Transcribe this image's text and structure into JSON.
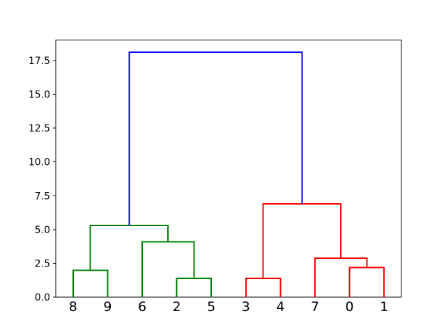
{
  "figure": {
    "background": "#ffffff",
    "frame_color": "#000000",
    "tick_color": "#000000",
    "label_color": "#000000"
  },
  "chart_data": {
    "type": "dendrogram",
    "title": "",
    "xlabel": "",
    "ylabel": "",
    "xlim": [
      0,
      100
    ],
    "ylim": [
      0,
      19.0
    ],
    "grid": false,
    "legend": null,
    "leaf_labels": [
      "8",
      "9",
      "6",
      "2",
      "5",
      "3",
      "4",
      "7",
      "0",
      "1"
    ],
    "leaf_positions": [
      5,
      15,
      25,
      35,
      45,
      55,
      65,
      75,
      85,
      95
    ],
    "y_ticks": [
      {
        "value": 0.0,
        "label": "0.0"
      },
      {
        "value": 2.5,
        "label": "2.5"
      },
      {
        "value": 5.0,
        "label": "5.0"
      },
      {
        "value": 7.5,
        "label": "7.5"
      },
      {
        "value": 10.0,
        "label": "10.0"
      },
      {
        "value": 12.5,
        "label": "12.5"
      },
      {
        "value": 15.0,
        "label": "15.0"
      },
      {
        "value": 17.5,
        "label": "17.5"
      }
    ],
    "link_colors": {
      "left_cluster": "#008000",
      "right_cluster": "#ff0000",
      "root": "#0000ff"
    },
    "merge_heights": {
      "8-9": 2.0,
      "2-5": 1.4,
      "6-(2,5)": 4.1,
      "(8,9)-(6,2,5)": 5.3,
      "3-4": 1.4,
      "0-1": 2.2,
      "7-(0,1)": 2.9,
      "(3,4)-(7,0,1)": 6.9,
      "root": 18.1
    },
    "links": [
      {
        "name": "merge-8-9",
        "color": "#008000",
        "x": [
          5,
          5,
          15,
          15
        ],
        "y": [
          0,
          2.0,
          2.0,
          0
        ]
      },
      {
        "name": "merge-2-5",
        "color": "#008000",
        "x": [
          35,
          35,
          45,
          45
        ],
        "y": [
          0,
          1.4,
          1.4,
          0
        ]
      },
      {
        "name": "merge-6-25",
        "color": "#008000",
        "x": [
          25,
          25,
          40,
          40
        ],
        "y": [
          0,
          4.1,
          4.1,
          1.4
        ]
      },
      {
        "name": "merge-89-625",
        "color": "#008000",
        "x": [
          10,
          10,
          32.5,
          32.5
        ],
        "y": [
          2.0,
          5.3,
          5.3,
          4.1
        ]
      },
      {
        "name": "merge-3-4",
        "color": "#ff0000",
        "x": [
          55,
          55,
          65,
          65
        ],
        "y": [
          0,
          1.4,
          1.4,
          0
        ]
      },
      {
        "name": "merge-0-1",
        "color": "#ff0000",
        "x": [
          85,
          85,
          95,
          95
        ],
        "y": [
          0,
          2.2,
          2.2,
          0
        ]
      },
      {
        "name": "merge-7-01",
        "color": "#ff0000",
        "x": [
          75,
          75,
          90,
          90
        ],
        "y": [
          0,
          2.9,
          2.9,
          2.2
        ]
      },
      {
        "name": "merge-34-701",
        "color": "#ff0000",
        "x": [
          60,
          60,
          82.5,
          82.5
        ],
        "y": [
          1.4,
          6.9,
          6.9,
          2.9
        ]
      },
      {
        "name": "merge-root",
        "color": "#0000ff",
        "x": [
          21.25,
          21.25,
          71.25,
          71.25
        ],
        "y": [
          5.3,
          18.1,
          18.1,
          6.9
        ]
      }
    ]
  }
}
